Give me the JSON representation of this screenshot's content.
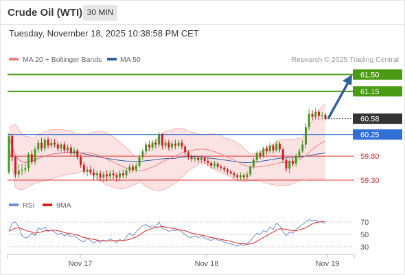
{
  "header": {
    "title": "Crude Oil (WTI)",
    "timeframe": "30 MIN",
    "datetime": "Tuesday, November 18, 2025 10:38:58 PM CET"
  },
  "legend": {
    "items": [
      {
        "label": "MA 20 + Bollinger Bands",
        "color": "#f08080"
      },
      {
        "label": "MA 50",
        "color": "#2f5f9f"
      }
    ],
    "credit": "Research © 2025 Trading Central"
  },
  "rsi_legend": {
    "items": [
      {
        "label": "RSI",
        "color": "#6a8fd8"
      },
      {
        "label": "9MA",
        "color": "#dd2222"
      }
    ]
  },
  "chart_data": [
    {
      "type": "candlestick",
      "title": "Crude Oil (WTI)",
      "timeframe": "30 MIN",
      "x_ticks": [
        "Nov 17",
        "Nov 18",
        "Nov 19"
      ],
      "ylim": [
        59.1,
        61.62
      ],
      "current_price": 60.58,
      "levels": [
        {
          "label": "61.50",
          "value": 61.5,
          "kind": "resistance",
          "color": "#4a9a14",
          "tag": true
        },
        {
          "label": "61.15",
          "value": 61.15,
          "kind": "resistance",
          "color": "#4a9a14",
          "tag": true
        },
        {
          "label": "60.58",
          "value": 60.58,
          "kind": "current",
          "color": "#333333",
          "tag": true
        },
        {
          "label": "60.25",
          "value": 60.25,
          "kind": "pivot",
          "color": "#2f6fd6",
          "tag": true
        },
        {
          "label": "59.80",
          "value": 59.8,
          "kind": "support",
          "color": "#dd3333",
          "tag": false
        },
        {
          "label": "59.30",
          "value": 59.3,
          "kind": "support",
          "color": "#dd3333",
          "tag": false
        }
      ],
      "target": {
        "from": 60.58,
        "to": 61.5,
        "color": "#2f5f9f"
      },
      "candles": [
        [
          59.46,
          60.22,
          60.28,
          59.42
        ],
        [
          60.22,
          59.78,
          60.26,
          59.7
        ],
        [
          59.78,
          59.42,
          59.8,
          59.35
        ],
        [
          59.42,
          59.5,
          59.62,
          59.34
        ],
        [
          59.5,
          59.52,
          59.64,
          59.4
        ],
        [
          59.52,
          59.55,
          59.66,
          59.44
        ],
        [
          59.55,
          59.84,
          59.88,
          59.48
        ],
        [
          59.84,
          59.68,
          59.92,
          59.62
        ],
        [
          59.68,
          59.94,
          60.0,
          59.62
        ],
        [
          59.94,
          60.08,
          60.14,
          59.86
        ],
        [
          60.08,
          59.96,
          60.18,
          59.9
        ],
        [
          59.96,
          60.14,
          60.18,
          59.9
        ],
        [
          60.14,
          60.02,
          60.2,
          59.96
        ],
        [
          60.02,
          60.08,
          60.16,
          59.98
        ],
        [
          60.08,
          60.04,
          60.16,
          59.98
        ],
        [
          60.04,
          59.96,
          60.1,
          59.9
        ],
        [
          59.96,
          60.04,
          60.08,
          59.88
        ],
        [
          60.04,
          59.92,
          60.1,
          59.86
        ],
        [
          59.92,
          59.98,
          60.04,
          59.86
        ],
        [
          59.98,
          59.86,
          60.04,
          59.8
        ],
        [
          59.86,
          59.92,
          59.98,
          59.78
        ],
        [
          59.92,
          59.78,
          59.96,
          59.72
        ],
        [
          59.78,
          59.62,
          59.84,
          59.56
        ],
        [
          59.62,
          59.48,
          59.68,
          59.42
        ],
        [
          59.48,
          59.52,
          59.58,
          59.38
        ],
        [
          59.52,
          59.46,
          59.6,
          59.4
        ],
        [
          59.46,
          59.4,
          59.54,
          59.3
        ],
        [
          59.4,
          59.44,
          59.5,
          59.3
        ],
        [
          59.44,
          59.36,
          59.5,
          59.28
        ],
        [
          59.36,
          59.42,
          59.48,
          59.26
        ],
        [
          59.42,
          59.38,
          59.5,
          59.28
        ],
        [
          59.38,
          59.44,
          59.5,
          59.3
        ],
        [
          59.44,
          59.4,
          59.52,
          59.32
        ],
        [
          59.4,
          59.36,
          59.46,
          59.26
        ],
        [
          59.36,
          59.44,
          59.5,
          59.28
        ],
        [
          59.44,
          59.4,
          59.52,
          59.34
        ],
        [
          59.4,
          59.5,
          59.56,
          59.34
        ],
        [
          59.5,
          59.58,
          59.64,
          59.44
        ],
        [
          59.58,
          59.52,
          59.64,
          59.46
        ],
        [
          59.52,
          59.6,
          59.66,
          59.46
        ],
        [
          59.6,
          59.78,
          59.84,
          59.56
        ],
        [
          59.78,
          59.9,
          59.96,
          59.72
        ],
        [
          59.9,
          60.04,
          60.1,
          59.84
        ],
        [
          60.04,
          59.98,
          60.12,
          59.9
        ],
        [
          59.98,
          60.08,
          60.14,
          59.92
        ],
        [
          60.08,
          60.04,
          60.16,
          59.96
        ],
        [
          60.04,
          60.26,
          60.3,
          59.98
        ],
        [
          60.26,
          60.02,
          60.28,
          59.94
        ],
        [
          60.02,
          60.08,
          60.14,
          59.96
        ],
        [
          60.08,
          59.98,
          60.14,
          59.92
        ],
        [
          59.98,
          60.06,
          60.12,
          59.92
        ],
        [
          60.06,
          60.02,
          60.14,
          59.94
        ],
        [
          60.02,
          60.08,
          60.14,
          59.96
        ],
        [
          60.08,
          60.0,
          60.14,
          59.94
        ],
        [
          60.0,
          59.88,
          60.04,
          59.82
        ],
        [
          59.88,
          59.78,
          59.92,
          59.72
        ],
        [
          59.78,
          59.74,
          59.84,
          59.68
        ],
        [
          59.74,
          59.76,
          59.82,
          59.68
        ],
        [
          59.76,
          59.72,
          59.8,
          59.66
        ],
        [
          59.72,
          59.76,
          59.82,
          59.66
        ],
        [
          59.76,
          59.7,
          59.8,
          59.64
        ],
        [
          59.7,
          59.66,
          59.76,
          59.6
        ],
        [
          59.66,
          59.6,
          59.7,
          59.54
        ],
        [
          59.6,
          59.64,
          59.7,
          59.54
        ],
        [
          59.64,
          59.58,
          59.68,
          59.52
        ],
        [
          59.58,
          59.56,
          59.62,
          59.5
        ],
        [
          59.56,
          59.52,
          59.6,
          59.46
        ],
        [
          59.52,
          59.48,
          59.56,
          59.42
        ],
        [
          59.48,
          59.44,
          59.52,
          59.4
        ],
        [
          59.44,
          59.4,
          59.48,
          59.34
        ],
        [
          59.4,
          59.36,
          59.44,
          59.3
        ],
        [
          59.36,
          59.4,
          59.46,
          59.3
        ],
        [
          59.4,
          59.36,
          59.44,
          59.3
        ],
        [
          59.36,
          59.42,
          59.48,
          59.3
        ],
        [
          59.42,
          59.58,
          59.62,
          59.38
        ],
        [
          59.58,
          59.72,
          59.76,
          59.54
        ],
        [
          59.72,
          59.86,
          59.9,
          59.66
        ],
        [
          59.86,
          59.8,
          59.92,
          59.74
        ],
        [
          59.8,
          59.96,
          60.0,
          59.76
        ],
        [
          59.96,
          59.9,
          60.02,
          59.84
        ],
        [
          59.9,
          60.02,
          60.08,
          59.86
        ],
        [
          60.02,
          59.92,
          60.06,
          59.86
        ],
        [
          59.92,
          60.06,
          60.12,
          59.88
        ],
        [
          60.06,
          59.94,
          60.1,
          59.88
        ],
        [
          59.94,
          59.72,
          59.98,
          59.66
        ],
        [
          59.72,
          59.54,
          59.76,
          59.48
        ],
        [
          59.54,
          59.7,
          59.74,
          59.44
        ],
        [
          59.7,
          59.64,
          59.76,
          59.58
        ],
        [
          59.64,
          59.8,
          59.86,
          59.58
        ],
        [
          59.8,
          59.9,
          59.96,
          59.76
        ],
        [
          59.9,
          60.04,
          60.14,
          59.86
        ],
        [
          60.04,
          60.4,
          60.48,
          59.96
        ],
        [
          60.4,
          60.68,
          60.78,
          60.34
        ],
        [
          60.68,
          60.62,
          60.76,
          60.54
        ],
        [
          60.62,
          60.72,
          60.8,
          60.56
        ],
        [
          60.72,
          60.64,
          60.76,
          60.56
        ],
        [
          60.64,
          60.66,
          60.72,
          60.56
        ],
        [
          60.66,
          60.58,
          60.7,
          60.54
        ]
      ]
    },
    {
      "type": "line",
      "title": "",
      "series": [
        {
          "name": "RSI"
        },
        {
          "name": "9MA"
        }
      ],
      "y_ticks": [
        70,
        50,
        30
      ],
      "ylim": [
        20,
        80
      ],
      "rsi": [
        55,
        68,
        70,
        62,
        48,
        44,
        46,
        52,
        48,
        60,
        58,
        62,
        55,
        57,
        54,
        50,
        52,
        48,
        50,
        46,
        48,
        44,
        40,
        38,
        44,
        40,
        36,
        40,
        37,
        41,
        39,
        43,
        40,
        37,
        42,
        39,
        46,
        52,
        48,
        54,
        60,
        64,
        66,
        62,
        64,
        62,
        70,
        60,
        58,
        55,
        57,
        56,
        58,
        54,
        50,
        46,
        45,
        48,
        45,
        48,
        44,
        42,
        40,
        44,
        41,
        40,
        38,
        36,
        35,
        33,
        31,
        34,
        32,
        35,
        40,
        46,
        52,
        50,
        56,
        54,
        62,
        58,
        68,
        64,
        55,
        48,
        54,
        52,
        58,
        62,
        66,
        70,
        74,
        72,
        73,
        70,
        70,
        68
      ],
      "ma9": [
        55,
        58,
        60,
        61,
        59,
        57,
        55,
        54,
        52,
        53,
        54,
        56,
        56,
        57,
        57,
        56,
        55,
        53,
        52,
        51,
        50,
        49,
        47,
        45,
        44,
        43,
        42,
        41,
        40,
        40,
        39,
        40,
        40,
        40,
        40,
        40,
        41,
        42,
        44,
        46,
        49,
        53,
        56,
        58,
        60,
        61,
        62,
        63,
        62,
        61,
        60,
        59,
        58,
        57,
        56,
        54,
        52,
        51,
        50,
        49,
        48,
        46,
        45,
        44,
        43,
        42,
        41,
        40,
        39,
        37,
        36,
        35,
        35,
        34,
        35,
        36,
        39,
        42,
        45,
        48,
        51,
        54,
        57,
        59,
        59,
        58,
        57,
        56,
        56,
        57,
        59,
        61,
        64,
        67,
        69,
        70,
        71,
        71
      ]
    }
  ]
}
